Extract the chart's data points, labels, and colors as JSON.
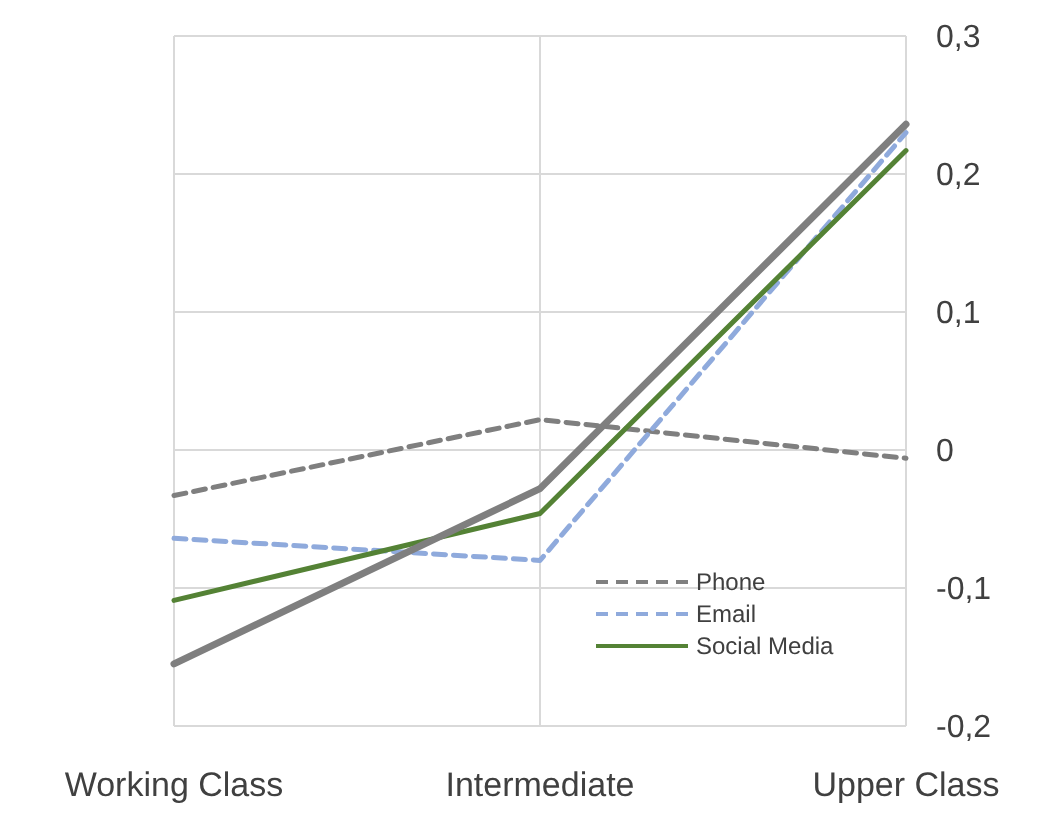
{
  "chart_data": {
    "type": "line",
    "categories": [
      "Working Class",
      "Intermediate",
      "Upper Class"
    ],
    "series": [
      {
        "name": "Phone",
        "color": "#7f7f7f",
        "line_style": "dashed",
        "values": [
          -0.033,
          0.022,
          -0.006
        ]
      },
      {
        "name": "Email",
        "color": "#8faadc",
        "line_style": "dashed",
        "values": [
          -0.064,
          -0.08,
          0.23
        ]
      },
      {
        "name": "Social Media",
        "color": "#548235",
        "line_style": "solid",
        "values": [
          -0.109,
          -0.046,
          0.217
        ]
      },
      {
        "color": "#7f7f7f",
        "line_style": "solid",
        "values": [
          -0.155,
          -0.028,
          0.236
        ]
      }
    ],
    "ylim": [
      -0.2,
      0.3
    ],
    "yticks": [
      {
        "value": -0.2,
        "label": "-0,2"
      },
      {
        "value": -0.1,
        "label": "-0,1"
      },
      {
        "value": 0,
        "label": "0"
      },
      {
        "value": 0.1,
        "label": "0,1"
      },
      {
        "value": 0.2,
        "label": "0,2"
      },
      {
        "value": 0.3,
        "label": "0,3"
      }
    ],
    "grid": true,
    "legend": "bottom right"
  }
}
